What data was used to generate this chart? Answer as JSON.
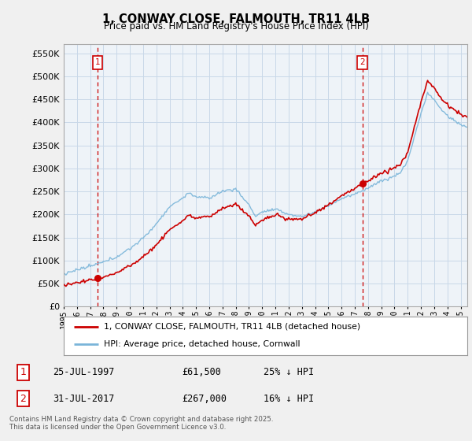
{
  "title": "1, CONWAY CLOSE, FALMOUTH, TR11 4LB",
  "subtitle": "Price paid vs. HM Land Registry's House Price Index (HPI)",
  "ylim": [
    0,
    570000
  ],
  "yticks": [
    0,
    50000,
    100000,
    150000,
    200000,
    250000,
    300000,
    350000,
    400000,
    450000,
    500000,
    550000
  ],
  "xlim_start": 1995.0,
  "xlim_end": 2025.5,
  "sale1_date": 1997.56,
  "sale1_price": 61500,
  "sale2_date": 2017.58,
  "sale2_price": 267000,
  "hpi_color": "#7ab5d9",
  "price_color": "#cc0000",
  "dashed_color": "#cc0000",
  "background_color": "#f0f0f0",
  "plot_bg_color": "#eef3f8",
  "grid_color": "#c8d8e8",
  "legend_label_price": "1, CONWAY CLOSE, FALMOUTH, TR11 4LB (detached house)",
  "legend_label_hpi": "HPI: Average price, detached house, Cornwall",
  "footnote": "Contains HM Land Registry data © Crown copyright and database right 2025.\nThis data is licensed under the Open Government Licence v3.0."
}
